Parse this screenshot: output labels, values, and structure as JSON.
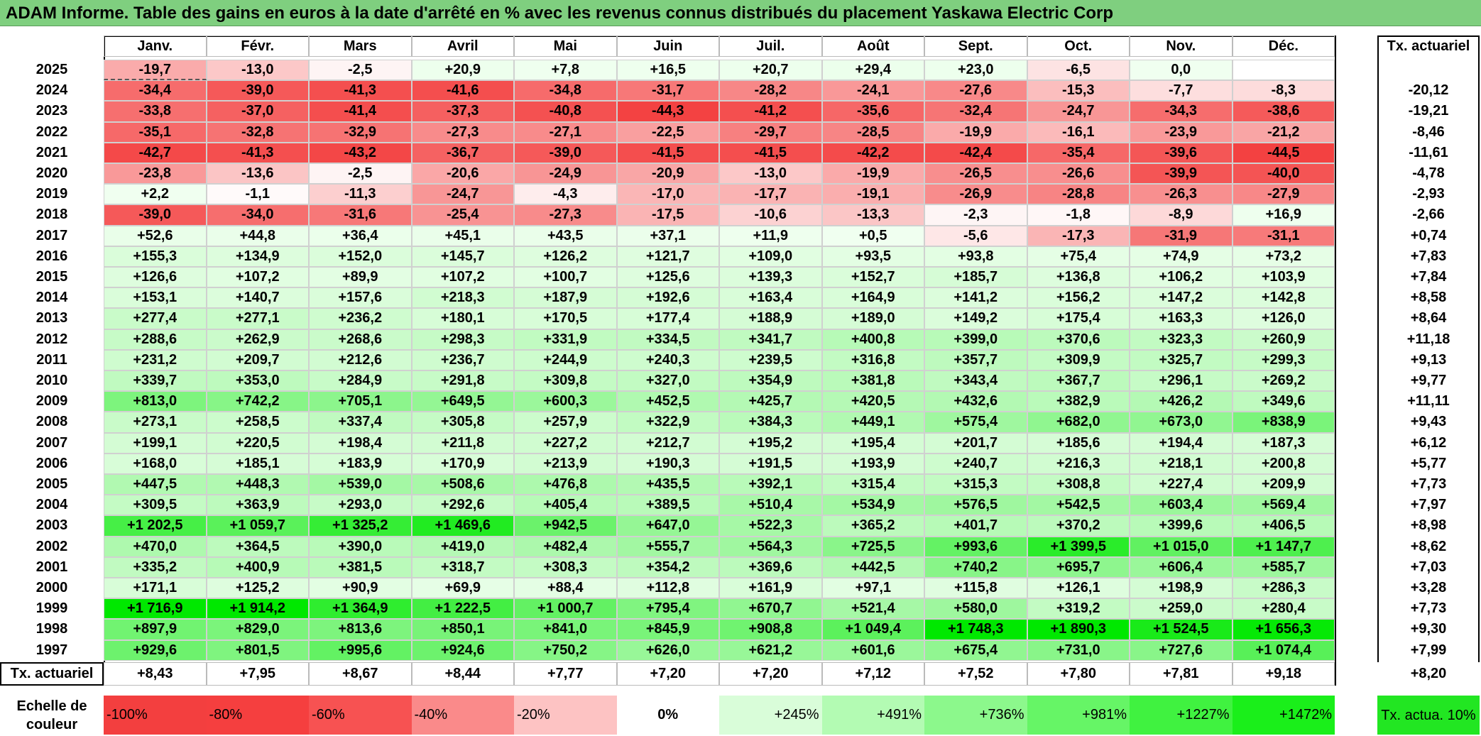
{
  "title": "ADAM Informe. Table des gains en euros à la date d'arrêté en % avec les revenus connus distribués du placement Yaskawa Electric Corp",
  "chart_data": {
    "type": "heatmap",
    "title": "ADAM Informe. Table des gains en euros à la date d'arrêté en % avec les revenus connus distribués du placement Yaskawa Electric Corp",
    "months": [
      "Janv.",
      "Févr.",
      "Mars",
      "Avril",
      "Mai",
      "Juin",
      "Juil.",
      "Août",
      "Sept.",
      "Oct.",
      "Nov.",
      "Déc."
    ],
    "rate_header": "Tx. actuariel",
    "rows": [
      {
        "year": "2025",
        "values": [
          "-19,7",
          "-13,0",
          "-2,5",
          "+20,9",
          "+7,8",
          "+16,5",
          "+20,7",
          "+29,4",
          "+23,0",
          "-6,5",
          "0,0",
          ""
        ],
        "rate": ""
      },
      {
        "year": "2024",
        "values": [
          "-34,4",
          "-39,0",
          "-41,3",
          "-41,6",
          "-34,8",
          "-31,7",
          "-28,2",
          "-24,1",
          "-27,6",
          "-15,3",
          "-7,7",
          "-8,3"
        ],
        "rate": "-20,12"
      },
      {
        "year": "2023",
        "values": [
          "-33,8",
          "-37,0",
          "-41,4",
          "-37,3",
          "-40,8",
          "-44,3",
          "-41,2",
          "-35,6",
          "-32,4",
          "-24,7",
          "-34,3",
          "-38,6"
        ],
        "rate": "-19,21"
      },
      {
        "year": "2022",
        "values": [
          "-35,1",
          "-32,8",
          "-32,9",
          "-27,3",
          "-27,1",
          "-22,5",
          "-29,7",
          "-28,5",
          "-19,9",
          "-16,1",
          "-23,9",
          "-21,2"
        ],
        "rate": "-8,46"
      },
      {
        "year": "2021",
        "values": [
          "-42,7",
          "-41,3",
          "-43,2",
          "-36,7",
          "-39,0",
          "-41,5",
          "-41,5",
          "-42,2",
          "-42,4",
          "-35,4",
          "-39,6",
          "-44,5"
        ],
        "rate": "-11,61"
      },
      {
        "year": "2020",
        "values": [
          "-23,8",
          "-13,6",
          "-2,5",
          "-20,6",
          "-24,9",
          "-20,9",
          "-13,0",
          "-19,9",
          "-26,5",
          "-26,6",
          "-39,9",
          "-40,0"
        ],
        "rate": "-4,78"
      },
      {
        "year": "2019",
        "values": [
          "+2,2",
          "-1,1",
          "-11,3",
          "-24,7",
          "-4,3",
          "-17,0",
          "-17,7",
          "-19,1",
          "-26,9",
          "-28,8",
          "-26,3",
          "-27,9"
        ],
        "rate": "-2,93"
      },
      {
        "year": "2018",
        "values": [
          "-39,0",
          "-34,0",
          "-31,6",
          "-25,4",
          "-27,3",
          "-17,5",
          "-10,6",
          "-13,3",
          "-2,3",
          "-1,8",
          "-8,9",
          "+16,9"
        ],
        "rate": "-2,66"
      },
      {
        "year": "2017",
        "values": [
          "+52,6",
          "+44,8",
          "+36,4",
          "+45,1",
          "+43,5",
          "+37,1",
          "+11,9",
          "+0,5",
          "-5,6",
          "-17,3",
          "-31,9",
          "-31,1"
        ],
        "rate": "+0,74"
      },
      {
        "year": "2016",
        "values": [
          "+155,3",
          "+134,9",
          "+152,0",
          "+145,7",
          "+126,2",
          "+121,7",
          "+109,0",
          "+93,5",
          "+93,8",
          "+75,4",
          "+74,9",
          "+73,2"
        ],
        "rate": "+7,83"
      },
      {
        "year": "2015",
        "values": [
          "+126,6",
          "+107,2",
          "+89,9",
          "+107,2",
          "+100,7",
          "+125,6",
          "+139,3",
          "+152,7",
          "+185,7",
          "+136,8",
          "+106,2",
          "+103,9"
        ],
        "rate": "+7,84"
      },
      {
        "year": "2014",
        "values": [
          "+153,1",
          "+140,7",
          "+157,6",
          "+218,3",
          "+187,9",
          "+192,6",
          "+163,4",
          "+164,9",
          "+141,2",
          "+156,2",
          "+147,2",
          "+142,8"
        ],
        "rate": "+8,58"
      },
      {
        "year": "2013",
        "values": [
          "+277,4",
          "+277,1",
          "+236,2",
          "+180,1",
          "+170,5",
          "+177,4",
          "+188,9",
          "+189,0",
          "+149,2",
          "+175,4",
          "+163,3",
          "+126,0"
        ],
        "rate": "+8,64"
      },
      {
        "year": "2012",
        "values": [
          "+288,6",
          "+262,9",
          "+268,6",
          "+298,3",
          "+331,9",
          "+334,5",
          "+341,7",
          "+400,8",
          "+399,0",
          "+370,6",
          "+323,3",
          "+260,9"
        ],
        "rate": "+11,18"
      },
      {
        "year": "2011",
        "values": [
          "+231,2",
          "+209,7",
          "+212,6",
          "+236,7",
          "+244,9",
          "+240,3",
          "+239,5",
          "+316,8",
          "+357,7",
          "+309,9",
          "+325,7",
          "+299,3"
        ],
        "rate": "+9,13"
      },
      {
        "year": "2010",
        "values": [
          "+339,7",
          "+353,0",
          "+284,9",
          "+291,8",
          "+309,8",
          "+327,0",
          "+354,9",
          "+381,8",
          "+343,4",
          "+367,7",
          "+296,1",
          "+269,2"
        ],
        "rate": "+9,77"
      },
      {
        "year": "2009",
        "values": [
          "+813,0",
          "+742,2",
          "+705,1",
          "+649,5",
          "+600,3",
          "+452,5",
          "+425,7",
          "+420,5",
          "+432,6",
          "+382,9",
          "+426,2",
          "+349,6"
        ],
        "rate": "+11,11"
      },
      {
        "year": "2008",
        "values": [
          "+273,1",
          "+258,5",
          "+337,4",
          "+305,8",
          "+257,9",
          "+322,9",
          "+384,3",
          "+449,1",
          "+575,4",
          "+682,0",
          "+673,0",
          "+838,9"
        ],
        "rate": "+9,43"
      },
      {
        "year": "2007",
        "values": [
          "+199,1",
          "+220,5",
          "+198,4",
          "+211,8",
          "+227,2",
          "+212,7",
          "+195,2",
          "+195,4",
          "+201,7",
          "+185,6",
          "+194,4",
          "+187,3"
        ],
        "rate": "+6,12"
      },
      {
        "year": "2006",
        "values": [
          "+168,0",
          "+185,1",
          "+183,9",
          "+170,9",
          "+213,9",
          "+190,3",
          "+191,5",
          "+193,9",
          "+240,7",
          "+216,3",
          "+218,1",
          "+200,8"
        ],
        "rate": "+5,77"
      },
      {
        "year": "2005",
        "values": [
          "+447,5",
          "+448,3",
          "+539,0",
          "+508,6",
          "+476,8",
          "+435,5",
          "+392,1",
          "+315,4",
          "+315,3",
          "+308,8",
          "+227,4",
          "+209,9"
        ],
        "rate": "+7,73"
      },
      {
        "year": "2004",
        "values": [
          "+309,5",
          "+363,9",
          "+293,0",
          "+292,6",
          "+405,4",
          "+389,5",
          "+510,4",
          "+534,9",
          "+576,5",
          "+542,5",
          "+603,4",
          "+569,4"
        ],
        "rate": "+7,97"
      },
      {
        "year": "2003",
        "values": [
          "+1 202,5",
          "+1 059,7",
          "+1 325,2",
          "+1 469,6",
          "+942,5",
          "+647,0",
          "+522,3",
          "+365,2",
          "+401,7",
          "+370,2",
          "+399,6",
          "+406,5"
        ],
        "rate": "+8,98"
      },
      {
        "year": "2002",
        "values": [
          "+470,0",
          "+364,5",
          "+390,0",
          "+419,0",
          "+482,4",
          "+555,7",
          "+564,3",
          "+725,5",
          "+993,6",
          "+1 399,5",
          "+1 015,0",
          "+1 147,7"
        ],
        "rate": "+8,62"
      },
      {
        "year": "2001",
        "values": [
          "+335,2",
          "+400,9",
          "+381,5",
          "+318,7",
          "+308,3",
          "+354,2",
          "+369,6",
          "+442,5",
          "+740,2",
          "+695,7",
          "+606,4",
          "+585,7"
        ],
        "rate": "+7,03"
      },
      {
        "year": "2000",
        "values": [
          "+171,1",
          "+125,2",
          "+90,9",
          "+69,9",
          "+88,4",
          "+112,8",
          "+161,9",
          "+97,1",
          "+115,8",
          "+126,1",
          "+198,9",
          "+286,3"
        ],
        "rate": "+3,28"
      },
      {
        "year": "1999",
        "values": [
          "+1 716,9",
          "+1 914,2",
          "+1 364,9",
          "+1 222,5",
          "+1 000,7",
          "+795,4",
          "+670,7",
          "+521,4",
          "+580,0",
          "+319,2",
          "+259,0",
          "+280,4"
        ],
        "rate": "+7,73"
      },
      {
        "year": "1998",
        "values": [
          "+897,9",
          "+829,0",
          "+813,6",
          "+850,1",
          "+841,0",
          "+845,9",
          "+908,8",
          "+1 049,4",
          "+1 748,3",
          "+1 890,3",
          "+1 524,5",
          "+1 656,3"
        ],
        "rate": "+9,30"
      },
      {
        "year": "1997",
        "values": [
          "+929,6",
          "+801,5",
          "+995,6",
          "+924,6",
          "+750,2",
          "+626,0",
          "+621,2",
          "+601,6",
          "+675,4",
          "+731,0",
          "+727,6",
          "+1 074,4"
        ],
        "rate": "+7,99"
      }
    ],
    "footer": {
      "label": "Tx. actuariel",
      "values": [
        "+8,43",
        "+7,95",
        "+8,67",
        "+8,44",
        "+7,77",
        "+7,20",
        "+7,20",
        "+7,12",
        "+7,52",
        "+7,80",
        "+7,81",
        "+9,18"
      ],
      "rate": "+8,20"
    },
    "scale": {
      "label": "Echelle de couleur",
      "items": [
        {
          "text": "-100%",
          "color": "#f33f3f",
          "align": "left"
        },
        {
          "text": "-80%",
          "color": "#f53f3f",
          "align": "left"
        },
        {
          "text": "-60%",
          "color": "#f75252",
          "align": "left"
        },
        {
          "text": "-40%",
          "color": "#fa8a8a",
          "align": "left"
        },
        {
          "text": "-20%",
          "color": "#fdc3c3",
          "align": "left"
        },
        {
          "text": "0%",
          "color": "#ffffff",
          "align": "center"
        },
        {
          "text": "+245%",
          "color": "#d9fdd9",
          "align": "right"
        },
        {
          "text": "+491%",
          "color": "#b3fbb3",
          "align": "right"
        },
        {
          "text": "+736%",
          "color": "#8cf88c",
          "align": "right"
        },
        {
          "text": "+981%",
          "color": "#66f566",
          "align": "right"
        },
        {
          "text": "+1227%",
          "color": "#40f240",
          "align": "right"
        },
        {
          "text": "+1472%",
          "color": "#1aef1a",
          "align": "right"
        }
      ],
      "rate_label": "Tx. actua. 10%",
      "rate_color": "#22e622"
    },
    "colors": {
      "title_bar": "#7fcf7f",
      "negative_max": "#f33f3f",
      "positive_max": "#00e600",
      "neutral": "#ffffff"
    }
  }
}
